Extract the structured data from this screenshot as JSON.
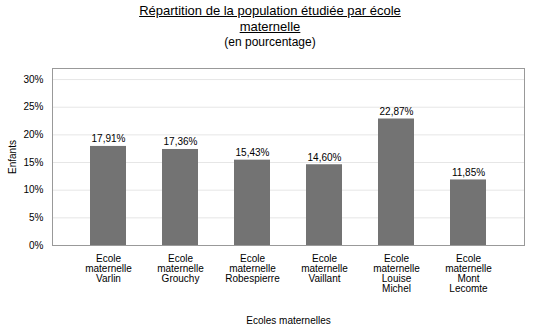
{
  "chart_data": {
    "type": "bar",
    "title": "Répartition de la population étudiée par école\nmaternelle",
    "subtitle": "(en pourcentage)",
    "x_label": "Ecoles maternelles",
    "y_label": "Enfants",
    "categories": [
      "Ecole\nmaternelle\nVarlin",
      "Ecole\nmaternelle\nGrouchy",
      "Ecole\nmaternelle\nRobespierre",
      "Ecole\nmaternelle\nVaillant",
      "Ecole\nmaternelle\nLouise\nMichel",
      "Ecole\nmaternelle\nMont\nLecomte"
    ],
    "values": [
      17.91,
      17.36,
      15.43,
      14.6,
      22.87,
      11.85
    ],
    "value_labels": [
      "17,91%",
      "17,36%",
      "15,43%",
      "14,60%",
      "22,87%",
      "11,85%"
    ],
    "data_labels": true,
    "color": "#737373",
    "ylim": [
      0,
      32
    ],
    "yticks": [
      {
        "value": 0,
        "label": "0%"
      },
      {
        "value": 5,
        "label": "5%"
      },
      {
        "value": 10,
        "label": "10%"
      },
      {
        "value": 15,
        "label": "15%"
      },
      {
        "value": 20,
        "label": "20%"
      },
      {
        "value": 25,
        "label": "25%"
      },
      {
        "value": 30,
        "label": "30%"
      }
    ],
    "grid": true
  }
}
